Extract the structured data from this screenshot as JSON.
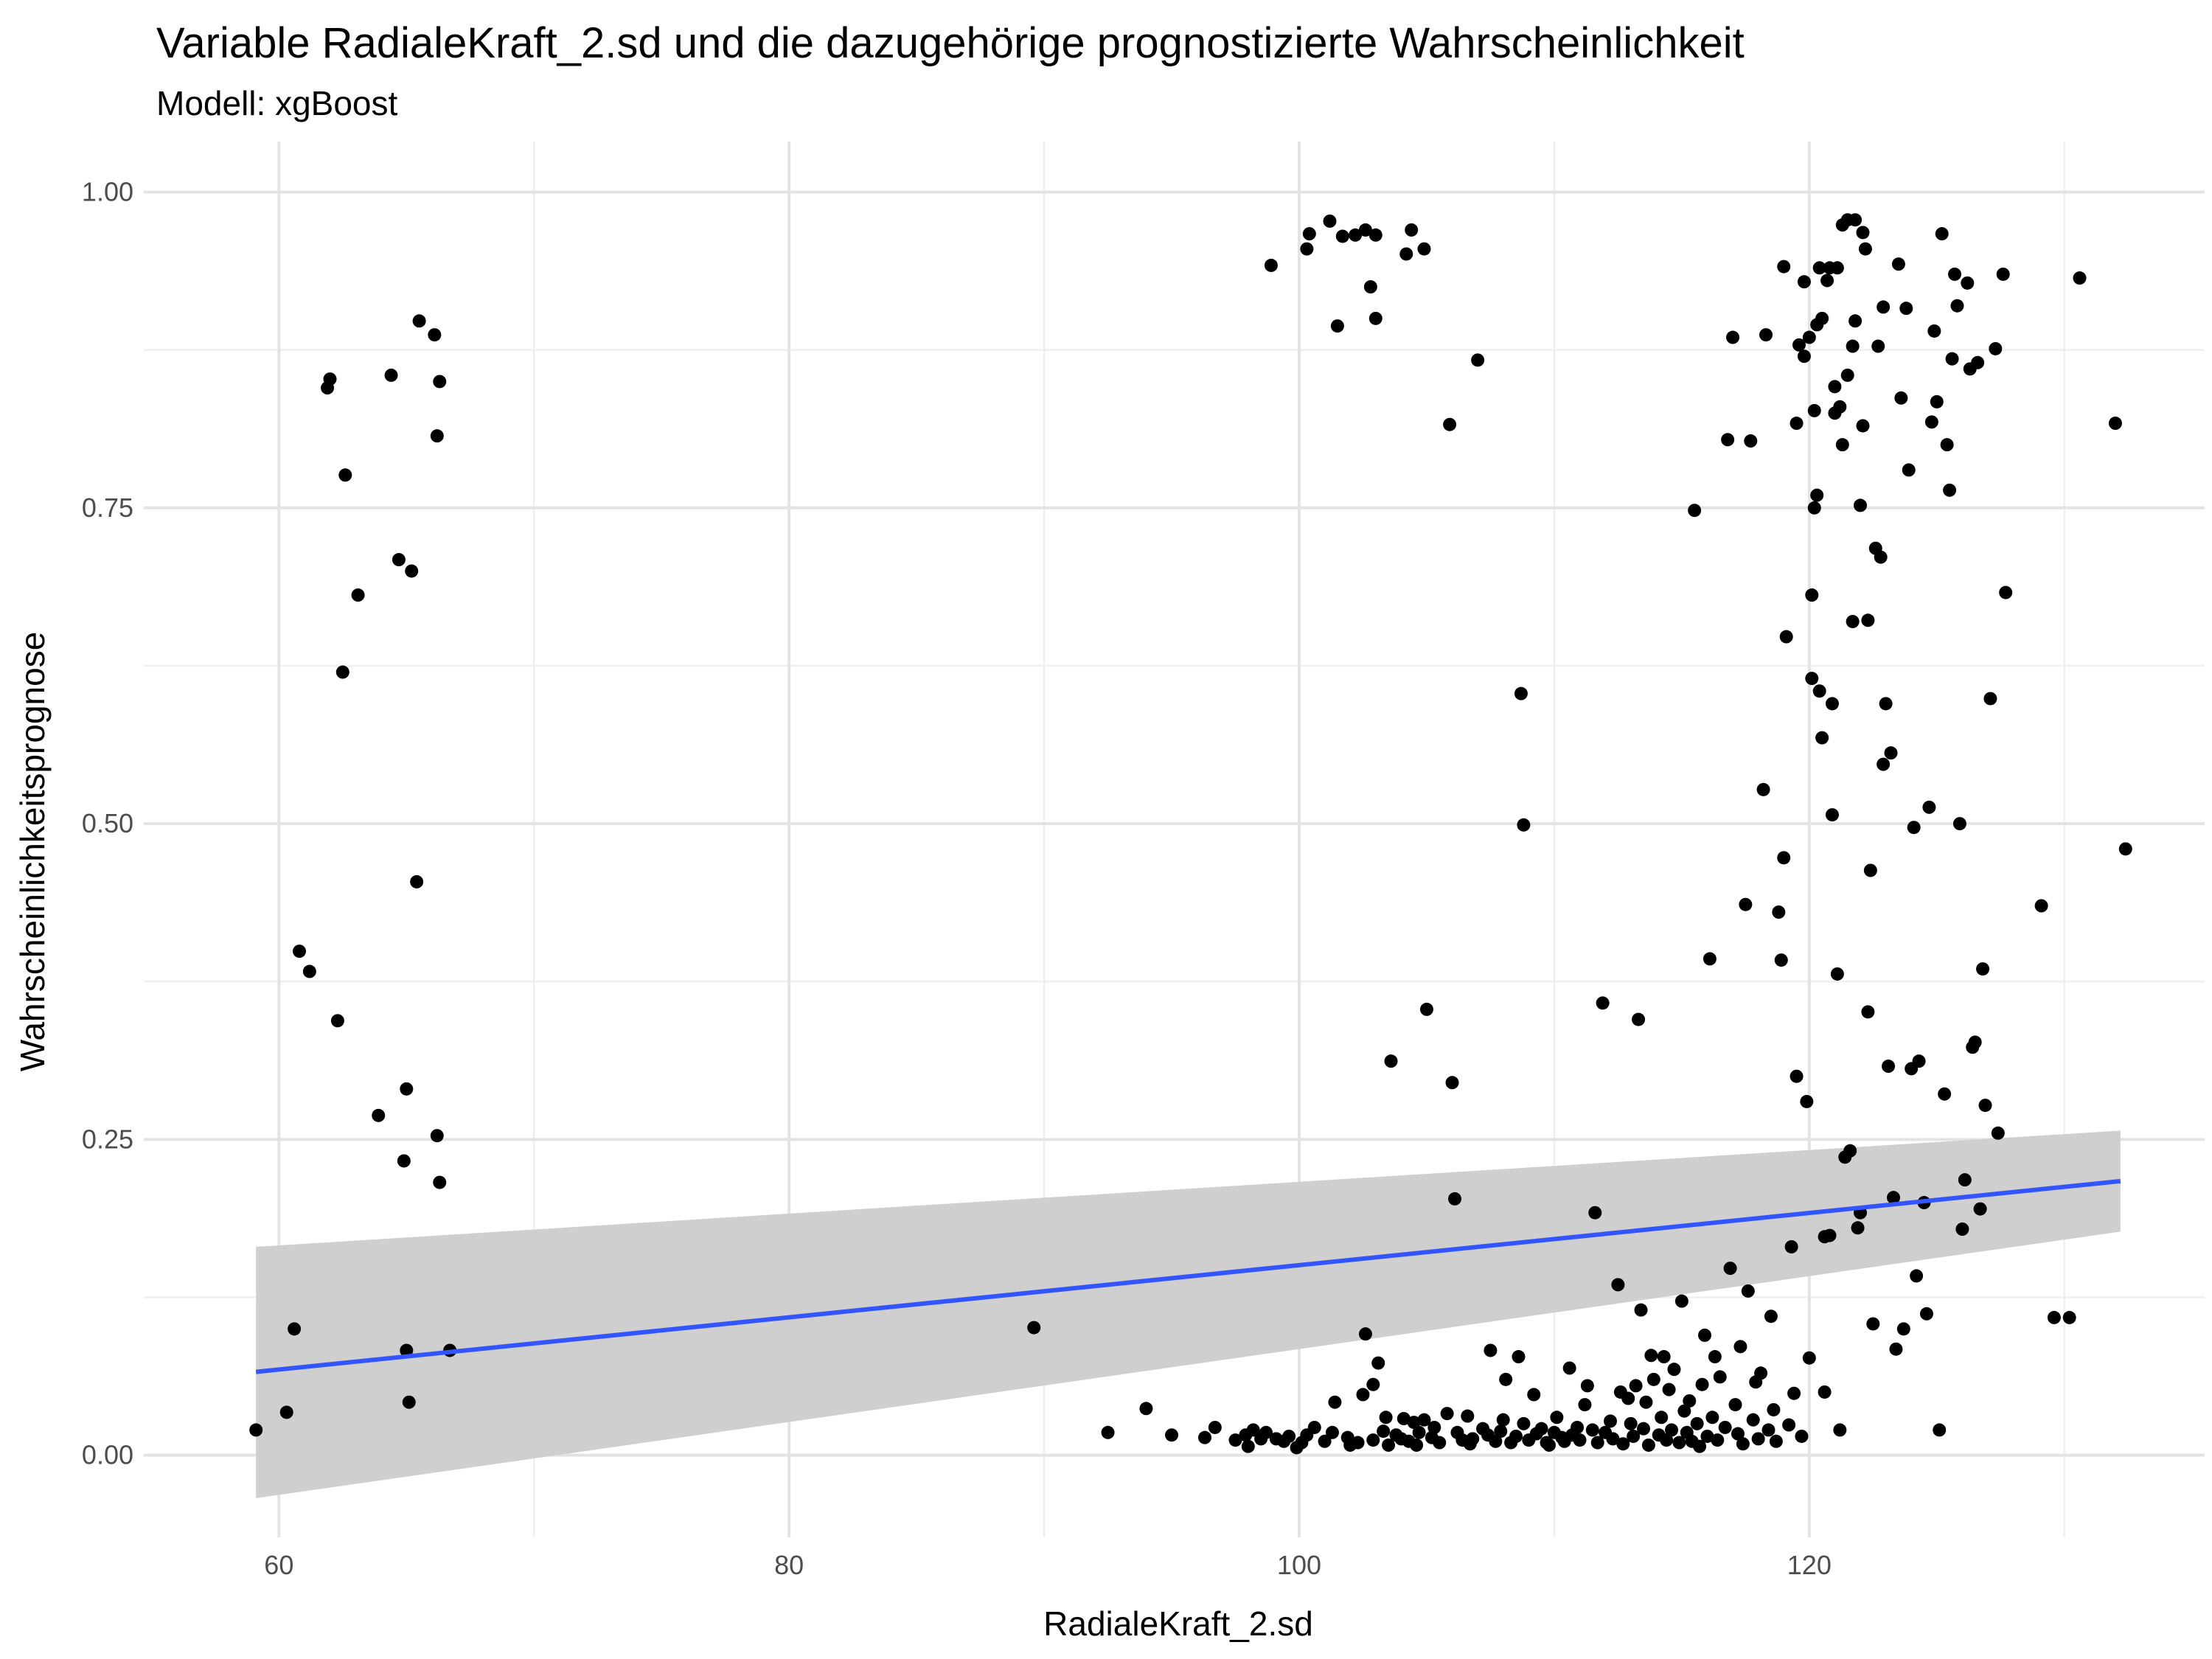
{
  "chart_data": {
    "type": "scatter",
    "title": "Variable RadialeKraft_2.sd und die dazugehörige prognostizierte Wahrscheinlichkeit",
    "subtitle": "Modell: xgBoost",
    "xlabel": "RadialeKraft_2.sd",
    "ylabel": "Wahrscheinlichkeitsprognose",
    "xlim": [
      54.7,
      135.5
    ],
    "ylim": [
      -0.065,
      1.04
    ],
    "x_ticks": [
      60,
      80,
      100,
      120
    ],
    "x_tick_labels": [
      "60",
      "80",
      "100",
      "120"
    ],
    "y_ticks": [
      0,
      0.25,
      0.5,
      0.75,
      1
    ],
    "y_tick_labels": [
      "0.00",
      "0.25",
      "0.50",
      "0.75",
      "1.00"
    ],
    "grid": true,
    "legend": "none",
    "colors": {
      "points": "#000000",
      "trend": "#3355ff",
      "confidence_band": "#cccccc"
    },
    "trend_line": {
      "method": "linear",
      "x": [
        59.1,
        132.2
      ],
      "y": [
        0.066,
        0.217
      ],
      "ci_lower": [
        -0.034,
        0.177
      ],
      "ci_upper": [
        0.165,
        0.257
      ]
    },
    "points": [
      [
        59.1,
        0.02
      ],
      [
        60.3,
        0.034
      ],
      [
        60.6,
        0.1
      ],
      [
        60.8,
        0.399
      ],
      [
        61.2,
        0.383
      ],
      [
        61.9,
        0.845
      ],
      [
        62.0,
        0.852
      ],
      [
        62.3,
        0.344
      ],
      [
        62.5,
        0.62
      ],
      [
        62.6,
        0.776
      ],
      [
        63.1,
        0.681
      ],
      [
        63.9,
        0.269
      ],
      [
        64.4,
        0.855
      ],
      [
        64.7,
        0.709
      ],
      [
        64.9,
        0.233
      ],
      [
        65.0,
        0.29
      ],
      [
        65.1,
        0.042
      ],
      [
        65.0,
        0.083
      ],
      [
        65.2,
        0.7
      ],
      [
        65.4,
        0.454
      ],
      [
        65.5,
        0.898
      ],
      [
        66.1,
        0.887
      ],
      [
        66.2,
        0.807
      ],
      [
        66.2,
        0.253
      ],
      [
        66.3,
        0.85
      ],
      [
        66.3,
        0.216
      ],
      [
        66.7,
        0.083
      ],
      [
        89.6,
        0.101
      ],
      [
        92.5,
        0.018
      ],
      [
        94.0,
        0.037
      ],
      [
        95.0,
        0.016
      ],
      [
        96.3,
        0.014
      ],
      [
        96.7,
        0.022
      ],
      [
        97.5,
        0.012
      ],
      [
        97.9,
        0.016
      ],
      [
        98.0,
        0.007
      ],
      [
        98.2,
        0.02
      ],
      [
        98.5,
        0.013
      ],
      [
        98.7,
        0.018
      ],
      [
        98.9,
        0.942
      ],
      [
        99.1,
        0.013
      ],
      [
        99.4,
        0.011
      ],
      [
        99.6,
        0.015
      ],
      [
        99.9,
        0.006
      ],
      [
        100.1,
        0.01
      ],
      [
        100.3,
        0.016
      ],
      [
        100.3,
        0.955
      ],
      [
        100.4,
        0.967
      ],
      [
        100.6,
        0.022
      ],
      [
        101.0,
        0.011
      ],
      [
        101.2,
        0.977
      ],
      [
        101.3,
        0.018
      ],
      [
        101.4,
        0.042
      ],
      [
        101.5,
        0.894
      ],
      [
        101.7,
        0.965
      ],
      [
        101.9,
        0.014
      ],
      [
        102.0,
        0.008
      ],
      [
        102.2,
        0.966
      ],
      [
        102.3,
        0.01
      ],
      [
        102.5,
        0.048
      ],
      [
        102.6,
        0.096
      ],
      [
        102.6,
        0.97
      ],
      [
        102.8,
        0.925
      ],
      [
        102.9,
        0.012
      ],
      [
        102.9,
        0.056
      ],
      [
        103.0,
        0.9
      ],
      [
        103.0,
        0.966
      ],
      [
        103.1,
        0.073
      ],
      [
        103.3,
        0.019
      ],
      [
        103.4,
        0.03
      ],
      [
        103.5,
        0.008
      ],
      [
        103.6,
        0.312
      ],
      [
        103.8,
        0.016
      ],
      [
        104.0,
        0.013
      ],
      [
        104.1,
        0.029
      ],
      [
        104.2,
        0.951
      ],
      [
        104.3,
        0.011
      ],
      [
        104.4,
        0.97
      ],
      [
        104.5,
        0.026
      ],
      [
        104.6,
        0.008
      ],
      [
        104.7,
        0.018
      ],
      [
        104.9,
        0.955
      ],
      [
        104.9,
        0.028
      ],
      [
        105.0,
        0.353
      ],
      [
        105.2,
        0.014
      ],
      [
        105.3,
        0.022
      ],
      [
        105.5,
        0.01
      ],
      [
        105.8,
        0.033
      ],
      [
        105.9,
        0.816
      ],
      [
        106.0,
        0.295
      ],
      [
        106.1,
        0.203
      ],
      [
        106.2,
        0.018
      ],
      [
        106.4,
        0.012
      ],
      [
        106.6,
        0.031
      ],
      [
        106.7,
        0.009
      ],
      [
        106.8,
        0.013
      ],
      [
        107.0,
        0.867
      ],
      [
        107.2,
        0.021
      ],
      [
        107.4,
        0.016
      ],
      [
        107.5,
        0.083
      ],
      [
        107.7,
        0.011
      ],
      [
        107.9,
        0.019
      ],
      [
        108.0,
        0.028
      ],
      [
        108.1,
        0.06
      ],
      [
        108.3,
        0.01
      ],
      [
        108.5,
        0.015
      ],
      [
        108.6,
        0.078
      ],
      [
        108.7,
        0.603
      ],
      [
        108.8,
        0.499
      ],
      [
        108.8,
        0.025
      ],
      [
        109.0,
        0.012
      ],
      [
        109.2,
        0.048
      ],
      [
        109.3,
        0.017
      ],
      [
        109.5,
        0.021
      ],
      [
        109.7,
        0.01
      ],
      [
        109.8,
        0.008
      ],
      [
        110.0,
        0.018
      ],
      [
        110.1,
        0.03
      ],
      [
        110.3,
        0.014
      ],
      [
        110.4,
        0.011
      ],
      [
        110.6,
        0.069
      ],
      [
        110.7,
        0.016
      ],
      [
        110.9,
        0.022
      ],
      [
        111.0,
        0.012
      ],
      [
        111.2,
        0.04
      ],
      [
        111.3,
        0.055
      ],
      [
        111.5,
        0.02
      ],
      [
        111.6,
        0.192
      ],
      [
        111.7,
        0.01
      ],
      [
        111.9,
        0.358
      ],
      [
        112.0,
        0.018
      ],
      [
        112.2,
        0.027
      ],
      [
        112.3,
        0.013
      ],
      [
        112.5,
        0.135
      ],
      [
        112.6,
        0.05
      ],
      [
        112.7,
        0.009
      ],
      [
        112.9,
        0.045
      ],
      [
        113.0,
        0.025
      ],
      [
        113.1,
        0.015
      ],
      [
        113.2,
        0.055
      ],
      [
        113.3,
        0.345
      ],
      [
        113.4,
        0.115
      ],
      [
        113.5,
        0.021
      ],
      [
        113.6,
        0.042
      ],
      [
        113.7,
        0.008
      ],
      [
        113.8,
        0.079
      ],
      [
        113.9,
        0.06
      ],
      [
        114.1,
        0.016
      ],
      [
        114.2,
        0.03
      ],
      [
        114.3,
        0.078
      ],
      [
        114.4,
        0.012
      ],
      [
        114.5,
        0.052
      ],
      [
        114.6,
        0.02
      ],
      [
        114.7,
        0.068
      ],
      [
        114.9,
        0.01
      ],
      [
        115.0,
        0.122
      ],
      [
        115.1,
        0.035
      ],
      [
        115.2,
        0.018
      ],
      [
        115.3,
        0.043
      ],
      [
        115.4,
        0.011
      ],
      [
        115.5,
        0.748
      ],
      [
        115.6,
        0.025
      ],
      [
        115.7,
        0.007
      ],
      [
        115.8,
        0.056
      ],
      [
        115.9,
        0.095
      ],
      [
        116.0,
        0.015
      ],
      [
        116.1,
        0.393
      ],
      [
        116.2,
        0.03
      ],
      [
        116.3,
        0.078
      ],
      [
        116.4,
        0.012
      ],
      [
        116.5,
        0.062
      ],
      [
        116.7,
        0.022
      ],
      [
        116.8,
        0.804
      ],
      [
        116.9,
        0.148
      ],
      [
        117.0,
        0.885
      ],
      [
        117.1,
        0.04
      ],
      [
        117.2,
        0.017
      ],
      [
        117.3,
        0.086
      ],
      [
        117.4,
        0.009
      ],
      [
        117.5,
        0.436
      ],
      [
        117.6,
        0.13
      ],
      [
        117.7,
        0.803
      ],
      [
        117.8,
        0.028
      ],
      [
        117.9,
        0.058
      ],
      [
        118.0,
        0.013
      ],
      [
        118.1,
        0.065
      ],
      [
        118.2,
        0.527
      ],
      [
        118.3,
        0.887
      ],
      [
        118.4,
        0.02
      ],
      [
        118.5,
        0.11
      ],
      [
        118.6,
        0.036
      ],
      [
        118.7,
        0.011
      ],
      [
        118.8,
        0.43
      ],
      [
        118.9,
        0.392
      ],
      [
        119.0,
        0.473
      ],
      [
        119.0,
        0.941
      ],
      [
        119.1,
        0.648
      ],
      [
        119.2,
        0.024
      ],
      [
        119.3,
        0.165
      ],
      [
        119.4,
        0.049
      ],
      [
        119.5,
        0.817
      ],
      [
        119.5,
        0.3
      ],
      [
        119.6,
        0.879
      ],
      [
        119.7,
        0.015
      ],
      [
        119.8,
        0.929
      ],
      [
        119.8,
        0.87
      ],
      [
        119.9,
        0.28
      ],
      [
        120.0,
        0.885
      ],
      [
        120.0,
        0.077
      ],
      [
        120.1,
        0.681
      ],
      [
        120.1,
        0.615
      ],
      [
        120.2,
        0.827
      ],
      [
        120.2,
        0.75
      ],
      [
        120.3,
        0.76
      ],
      [
        120.3,
        0.895
      ],
      [
        120.4,
        0.605
      ],
      [
        120.4,
        0.94
      ],
      [
        120.5,
        0.9
      ],
      [
        120.5,
        0.568
      ],
      [
        120.6,
        0.173
      ],
      [
        120.6,
        0.05
      ],
      [
        120.7,
        0.93
      ],
      [
        120.8,
        0.94
      ],
      [
        120.8,
        0.174
      ],
      [
        120.9,
        0.595
      ],
      [
        120.9,
        0.507
      ],
      [
        121.0,
        0.825
      ],
      [
        121.0,
        0.846
      ],
      [
        121.1,
        0.381
      ],
      [
        121.1,
        0.94
      ],
      [
        121.2,
        0.83
      ],
      [
        121.2,
        0.02
      ],
      [
        121.3,
        0.8
      ],
      [
        121.3,
        0.974
      ],
      [
        121.4,
        0.236
      ],
      [
        121.5,
        0.978
      ],
      [
        121.5,
        0.855
      ],
      [
        121.6,
        0.241
      ],
      [
        121.7,
        0.66
      ],
      [
        121.7,
        0.878
      ],
      [
        121.8,
        0.898
      ],
      [
        121.8,
        0.978
      ],
      [
        121.9,
        0.18
      ],
      [
        122.0,
        0.192
      ],
      [
        122.0,
        0.752
      ],
      [
        122.1,
        0.815
      ],
      [
        122.1,
        0.968
      ],
      [
        122.2,
        0.955
      ],
      [
        122.3,
        0.661
      ],
      [
        122.3,
        0.351
      ],
      [
        122.4,
        0.463
      ],
      [
        122.5,
        0.104
      ],
      [
        122.6,
        0.718
      ],
      [
        122.7,
        0.878
      ],
      [
        122.8,
        0.711
      ],
      [
        122.9,
        0.909
      ],
      [
        122.9,
        0.547
      ],
      [
        123.0,
        0.595
      ],
      [
        123.1,
        0.308
      ],
      [
        123.2,
        0.556
      ],
      [
        123.3,
        0.204
      ],
      [
        123.4,
        0.084
      ],
      [
        123.5,
        0.943
      ],
      [
        123.6,
        0.837
      ],
      [
        123.7,
        0.1
      ],
      [
        123.8,
        0.908
      ],
      [
        123.9,
        0.78
      ],
      [
        124.0,
        0.306
      ],
      [
        124.1,
        0.497
      ],
      [
        124.2,
        0.142
      ],
      [
        124.3,
        0.312
      ],
      [
        124.5,
        0.2
      ],
      [
        124.6,
        0.112
      ],
      [
        124.7,
        0.513
      ],
      [
        124.8,
        0.818
      ],
      [
        124.9,
        0.89
      ],
      [
        125.0,
        0.834
      ],
      [
        125.1,
        0.02
      ],
      [
        125.2,
        0.967
      ],
      [
        125.3,
        0.286
      ],
      [
        125.4,
        0.8
      ],
      [
        125.5,
        0.764
      ],
      [
        125.6,
        0.868
      ],
      [
        125.7,
        0.935
      ],
      [
        125.8,
        0.91
      ],
      [
        125.9,
        0.5
      ],
      [
        126.0,
        0.179
      ],
      [
        126.1,
        0.218
      ],
      [
        126.2,
        0.928
      ],
      [
        126.3,
        0.86
      ],
      [
        126.4,
        0.323
      ],
      [
        126.5,
        0.327
      ],
      [
        126.6,
        0.865
      ],
      [
        126.7,
        0.195
      ],
      [
        126.8,
        0.385
      ],
      [
        126.9,
        0.277
      ],
      [
        127.1,
        0.599
      ],
      [
        127.3,
        0.876
      ],
      [
        127.4,
        0.255
      ],
      [
        127.6,
        0.935
      ],
      [
        127.7,
        0.683
      ],
      [
        129.1,
        0.435
      ],
      [
        129.6,
        0.109
      ],
      [
        130.2,
        0.109
      ],
      [
        130.6,
        0.932
      ],
      [
        132.0,
        0.817
      ],
      [
        132.4,
        0.48
      ]
    ]
  }
}
